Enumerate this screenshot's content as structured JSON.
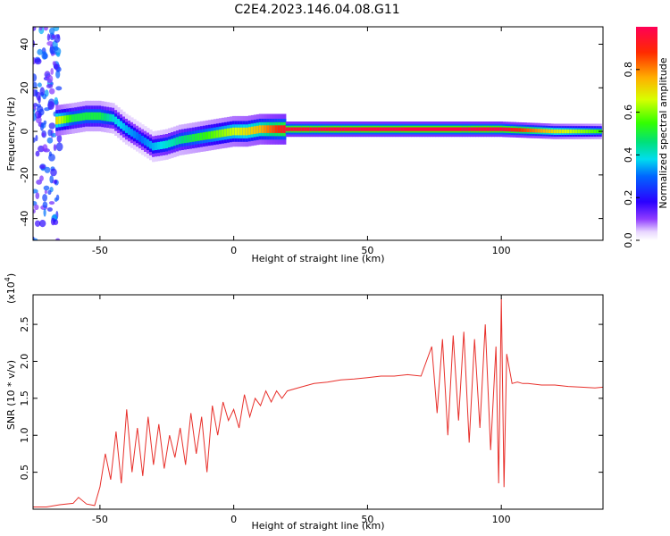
{
  "title": "C2E4.2023.146.04.08.G11",
  "chart_data": [
    {
      "type": "heatmap",
      "xlabel": "Height of straight line (km)",
      "ylabel": "Frequency (Hz)",
      "xlim": [
        -75,
        138
      ],
      "ylim": [
        -50,
        48
      ],
      "xticks": [
        -50,
        0,
        50,
        100
      ],
      "yticks": [
        -40,
        -20,
        0,
        20,
        40
      ],
      "colorbar": {
        "label": "Normalized spectral amplitude",
        "range": [
          0.0,
          1.0
        ],
        "ticks": [
          0.0,
          0.2,
          0.4,
          0.6,
          0.8
        ],
        "tick_labels": [
          "0.0",
          "0.2",
          "0.4",
          "0.6",
          "0.8"
        ]
      },
      "ridge": {
        "x": [
          -66,
          -60,
          -55,
          -50,
          -45,
          -40,
          -35,
          -30,
          -25,
          -20,
          -15,
          -10,
          -5,
          0,
          5,
          10,
          15,
          20,
          40,
          60,
          80,
          100,
          120,
          137
        ],
        "y": [
          5,
          6,
          7,
          7,
          6,
          1,
          -3,
          -7,
          -6,
          -4,
          -3,
          -2,
          -1,
          0,
          0,
          1,
          1,
          1,
          1,
          1,
          1,
          1,
          0,
          0
        ],
        "amplitude": [
          0.7,
          0.5,
          0.5,
          0.5,
          0.4,
          0.35,
          0.3,
          0.35,
          0.4,
          0.45,
          0.5,
          0.55,
          0.6,
          0.65,
          0.7,
          0.75,
          0.85,
          0.95,
          0.98,
          0.98,
          0.98,
          0.98,
          0.7,
          0.55
        ]
      },
      "noise_band": {
        "x_range": [
          -75,
          -65
        ],
        "note_level": 0.25
      }
    },
    {
      "type": "line",
      "xlabel": "Height of straight line (km)",
      "ylabel": "SNR (10 * v/v)",
      "y_multiplier": "(x10",
      "y_multiplier_exp": "4",
      "xlim": [
        -75,
        138
      ],
      "ylim": [
        0,
        2.9
      ],
      "xticks": [
        -50,
        0,
        50,
        100
      ],
      "yticks": [
        0.5,
        1.0,
        1.5,
        2.0,
        2.5
      ],
      "ytick_labels": [
        "0.5",
        "1.0",
        "1.5",
        "2.0",
        "2.5"
      ],
      "grid": false,
      "series": [
        {
          "color": "#e8302b",
          "x": [
            -75,
            -70,
            -65,
            -60,
            -58,
            -55,
            -52,
            -50,
            -48,
            -46,
            -44,
            -42,
            -40,
            -38,
            -36,
            -34,
            -32,
            -30,
            -28,
            -26,
            -24,
            -22,
            -20,
            -18,
            -16,
            -14,
            -12,
            -10,
            -8,
            -6,
            -4,
            -2,
            0,
            2,
            4,
            6,
            8,
            10,
            12,
            14,
            16,
            18,
            20,
            25,
            30,
            35,
            40,
            45,
            50,
            55,
            60,
            65,
            70,
            74,
            76,
            78,
            80,
            82,
            84,
            86,
            88,
            90,
            92,
            94,
            96,
            98,
            99,
            100,
            101,
            102,
            104,
            106,
            108,
            110,
            115,
            120,
            125,
            130,
            135,
            138
          ],
          "y": [
            0.03,
            0.03,
            0.06,
            0.08,
            0.16,
            0.07,
            0.05,
            0.3,
            0.75,
            0.4,
            1.05,
            0.35,
            1.35,
            0.5,
            1.1,
            0.45,
            1.25,
            0.6,
            1.15,
            0.55,
            1.0,
            0.7,
            1.1,
            0.6,
            1.3,
            0.75,
            1.25,
            0.5,
            1.4,
            1.0,
            1.45,
            1.2,
            1.35,
            1.1,
            1.55,
            1.25,
            1.5,
            1.4,
            1.6,
            1.45,
            1.6,
            1.5,
            1.6,
            1.65,
            1.7,
            1.72,
            1.75,
            1.76,
            1.78,
            1.8,
            1.8,
            1.82,
            1.8,
            2.2,
            1.3,
            2.3,
            1.0,
            2.35,
            1.2,
            2.4,
            0.9,
            2.3,
            1.1,
            2.5,
            0.8,
            2.2,
            0.35,
            2.85,
            0.3,
            2.1,
            1.7,
            1.72,
            1.7,
            1.7,
            1.68,
            1.68,
            1.66,
            1.65,
            1.64,
            1.65
          ]
        }
      ]
    }
  ]
}
